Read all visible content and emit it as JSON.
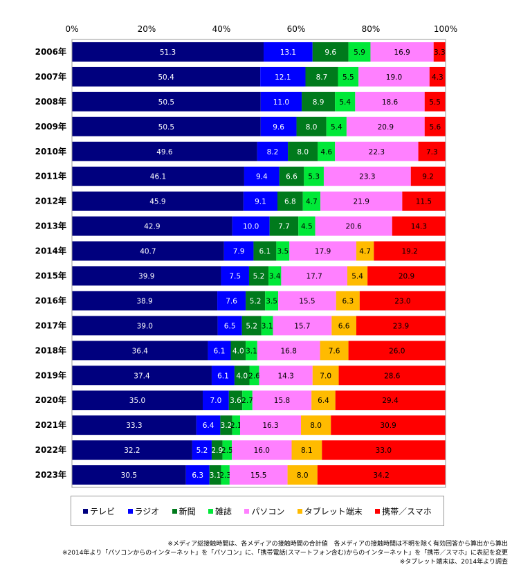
{
  "chart_data": {
    "type": "bar",
    "orientation": "horizontal",
    "stacked": true,
    "title": "",
    "xlabel": "",
    "ylabel": "",
    "xlim": [
      0,
      100
    ],
    "x_ticks": [
      "0%",
      "20%",
      "40%",
      "60%",
      "80%",
      "100%"
    ],
    "categories": [
      "2006年",
      "2007年",
      "2008年",
      "2009年",
      "2010年",
      "2011年",
      "2012年",
      "2013年",
      "2014年",
      "2015年",
      "2016年",
      "2017年",
      "2018年",
      "2019年",
      "2020年",
      "2021年",
      "2022年",
      "2023年"
    ],
    "legend_position": "bottom",
    "grid": false,
    "series": [
      {
        "name": "テレビ",
        "color": "#00007E",
        "values": [
          51.3,
          50.4,
          50.5,
          50.5,
          49.6,
          46.1,
          45.9,
          42.9,
          40.7,
          39.9,
          38.9,
          39.0,
          36.4,
          37.4,
          35.0,
          33.3,
          32.2,
          30.5
        ]
      },
      {
        "name": "ラジオ",
        "color": "#0000FF",
        "values": [
          13.1,
          12.1,
          11.0,
          9.6,
          8.2,
          9.4,
          9.1,
          10.0,
          7.9,
          7.5,
          7.6,
          6.5,
          6.1,
          6.1,
          7.0,
          6.4,
          5.2,
          6.3
        ]
      },
      {
        "name": "新聞",
        "color": "#007A1C",
        "values": [
          9.6,
          8.7,
          8.9,
          8.0,
          8.0,
          6.6,
          6.8,
          7.7,
          6.1,
          5.2,
          5.2,
          5.2,
          4.0,
          4.0,
          3.6,
          3.2,
          2.9,
          3.1
        ]
      },
      {
        "name": "雑誌",
        "color": "#00E838",
        "values": [
          5.9,
          5.5,
          5.4,
          5.4,
          4.6,
          5.3,
          4.7,
          4.5,
          3.5,
          3.4,
          3.5,
          3.1,
          3.1,
          2.6,
          2.7,
          2.1,
          2.5,
          2.3
        ]
      },
      {
        "name": "パソコン",
        "color": "#FF80FF",
        "values": [
          16.9,
          19.0,
          18.6,
          20.9,
          22.3,
          23.3,
          21.9,
          20.6,
          17.9,
          17.7,
          15.5,
          15.7,
          16.8,
          14.3,
          15.8,
          16.3,
          16.0,
          15.5
        ]
      },
      {
        "name": "タブレット端末",
        "color": "#FFBB00",
        "values": [
          null,
          null,
          null,
          null,
          null,
          null,
          null,
          null,
          4.7,
          5.4,
          6.3,
          6.6,
          7.6,
          7.0,
          6.4,
          8.0,
          8.1,
          8.0
        ]
      },
      {
        "name": "携帯／スマホ",
        "color": "#FF0000",
        "values": [
          3.3,
          4.3,
          5.5,
          5.6,
          7.3,
          9.2,
          11.5,
          14.3,
          19.2,
          20.9,
          23.0,
          23.9,
          26.0,
          28.6,
          29.4,
          30.9,
          33.0,
          34.2
        ]
      }
    ],
    "label_colors": [
      "#FFFFFF",
      "#FFFFFF",
      "#FFFFFF",
      "#000000",
      "#000000",
      "#000000",
      "#000000"
    ]
  },
  "notes": [
    "※メディア総接触時間は、各メディアの接触時間の合計値　各メディアの接触時間は不明を除く有効回答から算出から算出",
    "※2014年より「パソコンからのインターネット」を「パソコン」に、「携帯電話(スマートフォン含む)からのインターネット」を「携帯／スマホ」に表記を変更",
    "※タブレット端末は、2014年より調査"
  ]
}
